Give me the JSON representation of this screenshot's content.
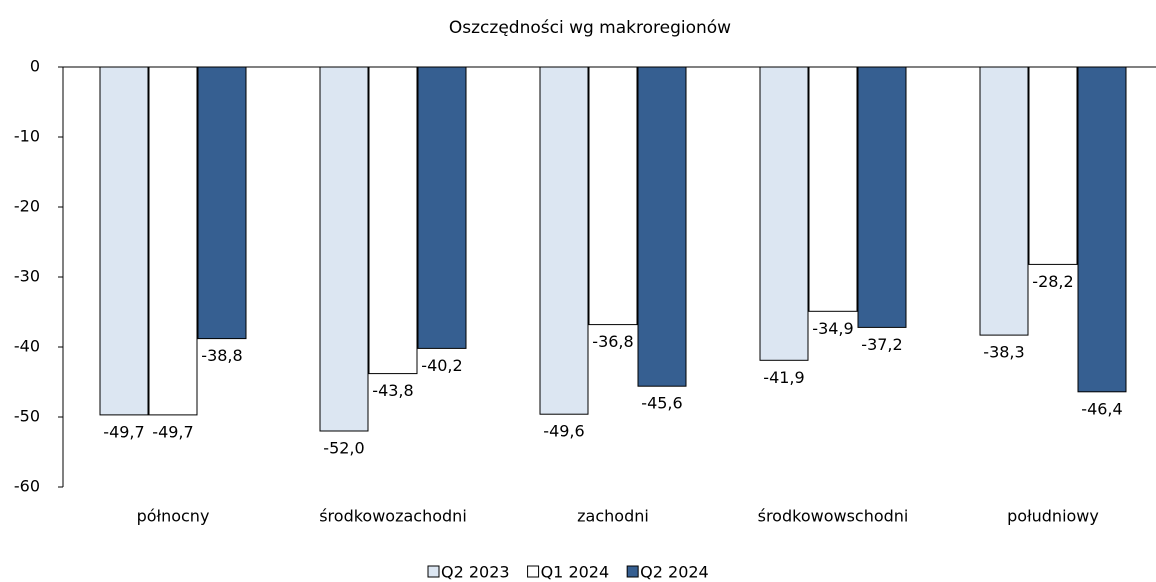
{
  "chart_data": {
    "type": "bar",
    "title": "Oszczędności wg makroregionów",
    "categories": [
      "północny",
      "środkowozachodni",
      "zachodni",
      "środkowowschodni",
      "południowy"
    ],
    "series": [
      {
        "name": "Q2 2023",
        "color": "#dce6f2",
        "values": [
          -49.7,
          -52.0,
          -49.6,
          -41.9,
          -38.3
        ],
        "value_labels": [
          "-49,7",
          "-52,0",
          "-49,6",
          "-41,9",
          "-38,3"
        ]
      },
      {
        "name": "Q1 2024",
        "color": "#ffffff",
        "values": [
          -49.7,
          -43.8,
          -36.8,
          -34.9,
          -28.2
        ],
        "value_labels": [
          "-49,7",
          "-43,8",
          "-36,8",
          "-34,9",
          "-28,2"
        ]
      },
      {
        "name": "Q2 2024",
        "color": "#365f91",
        "values": [
          -38.8,
          -40.2,
          -45.6,
          -37.2,
          -46.4
        ],
        "value_labels": [
          "-38,8",
          "-40,2",
          "-45,6",
          "-37,2",
          "-46,4"
        ]
      }
    ],
    "ylim": [
      -60,
      0
    ],
    "yticks": [
      0,
      -10,
      -20,
      -30,
      -40,
      -50,
      -60
    ],
    "legend": "bottom"
  }
}
